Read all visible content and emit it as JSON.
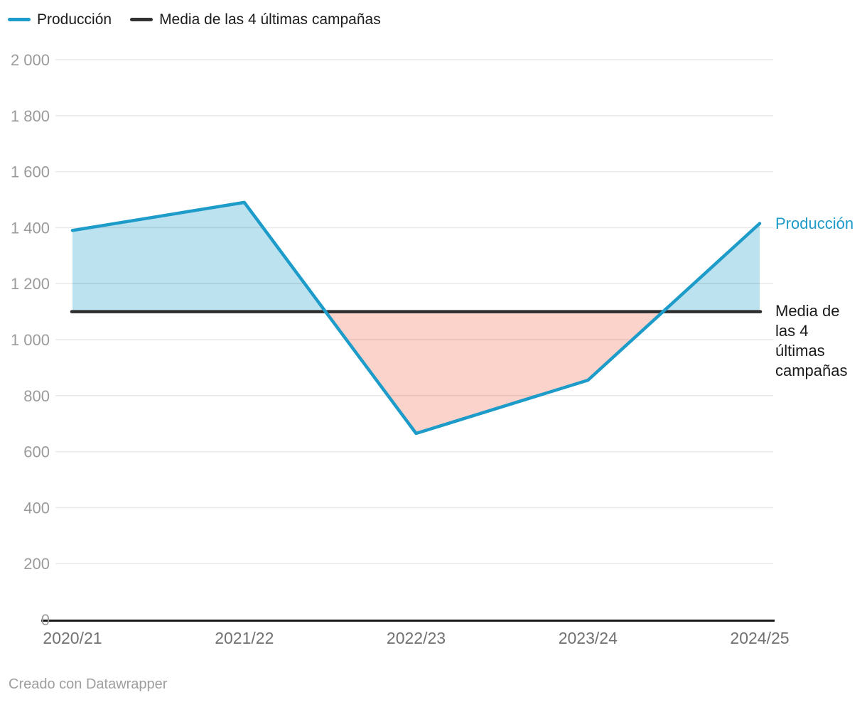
{
  "legend": {
    "items": [
      {
        "label": "Producción",
        "color": "#1D9BC9"
      },
      {
        "label": "Media de las 4 últimas campañas",
        "color": "#333333"
      }
    ]
  },
  "chart_data": {
    "type": "line",
    "categories": [
      "2020/21",
      "2021/22",
      "2022/23",
      "2023/24",
      "2024/25"
    ],
    "series": [
      {
        "name": "Producción",
        "values": [
          1390,
          1490,
          665,
          855,
          1415
        ],
        "color": "#1D9BC9"
      }
    ],
    "reference_line": {
      "name": "Media de las 4 últimas campañas",
      "value": 1100,
      "color": "#2E2E2E"
    },
    "area_above_color": "#BCE1EF",
    "area_below_color": "#FBD3CB",
    "ylim": [
      0,
      2000
    ],
    "ytick_step": 200,
    "ytick_labels": [
      "0",
      "200",
      "400",
      "600",
      "800",
      "1 000",
      "1 200",
      "1 400",
      "1 600",
      "1 800",
      "2 000"
    ],
    "grid": "horizontal",
    "legend_position": "top-left",
    "direct_labels": [
      {
        "text": "Producción",
        "color": "#1D9BC9"
      },
      {
        "text": "Media de\nlas 4\núltimas\ncampañas",
        "color": "#1a1a1a"
      }
    ]
  },
  "footer": {
    "credit": "Creado con Datawrapper"
  }
}
